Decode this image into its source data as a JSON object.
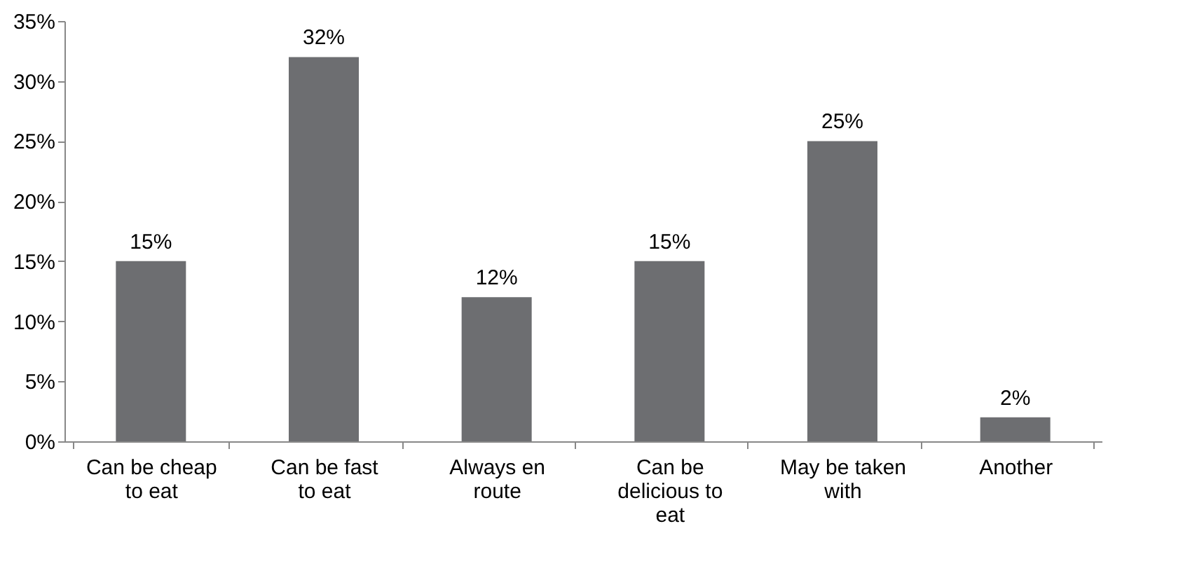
{
  "chart_data": {
    "type": "bar",
    "categories": [
      "Can be cheap to eat",
      "Can be fast to eat",
      "Always en route",
      "Can be delicious to eat",
      "May be taken with",
      "Another"
    ],
    "values": [
      15,
      32,
      12,
      15,
      25,
      2
    ],
    "value_labels": [
      "15%",
      "32%",
      "12%",
      "15%",
      "25%",
      "2%"
    ],
    "color": "#6d6e71",
    "ylim": [
      0,
      35
    ],
    "yticks": [
      {
        "value": 0,
        "label": "0%"
      },
      {
        "value": 5,
        "label": "5%"
      },
      {
        "value": 10,
        "label": "10%"
      },
      {
        "value": 15,
        "label": "15%"
      },
      {
        "value": 20,
        "label": "20%"
      },
      {
        "value": 25,
        "label": "25%"
      },
      {
        "value": 30,
        "label": "30%"
      },
      {
        "value": 35,
        "label": "35%"
      }
    ],
    "grid": false
  }
}
